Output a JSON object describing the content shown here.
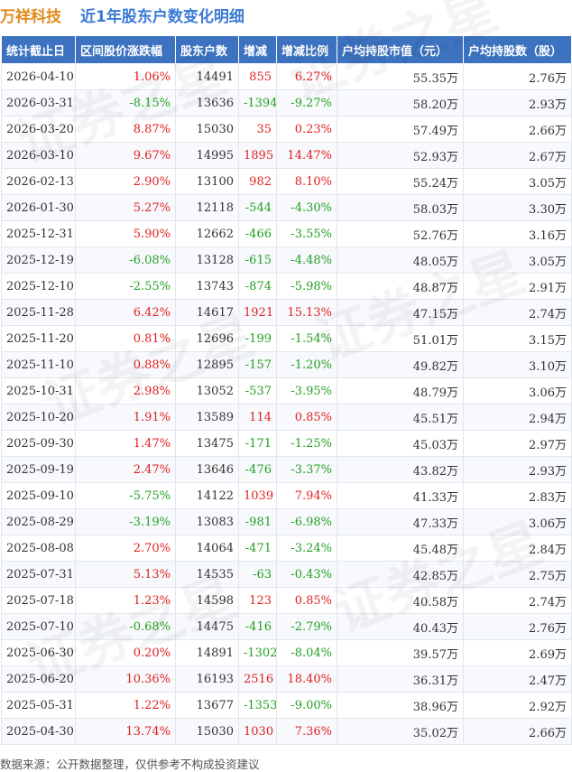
{
  "header": {
    "company": "万祥科技",
    "title": "近1年股东户数变化明细"
  },
  "table": {
    "columns": [
      "统计截止日",
      "区间股价涨跌幅",
      "股东户数",
      "增减",
      "增减比例",
      "户均持股市值（元）",
      "户均持股数（股）"
    ],
    "rows": [
      [
        "2026-04-10",
        "1.06%",
        "14491",
        "855",
        "6.27%",
        "55.35万",
        "2.76万"
      ],
      [
        "2026-03-31",
        "-8.15%",
        "13636",
        "-1394",
        "-9.27%",
        "58.20万",
        "2.93万"
      ],
      [
        "2026-03-20",
        "8.87%",
        "15030",
        "35",
        "0.23%",
        "57.49万",
        "2.66万"
      ],
      [
        "2026-03-10",
        "9.67%",
        "14995",
        "1895",
        "14.47%",
        "52.93万",
        "2.67万"
      ],
      [
        "2026-02-13",
        "2.90%",
        "13100",
        "982",
        "8.10%",
        "55.24万",
        "3.05万"
      ],
      [
        "2026-01-30",
        "5.27%",
        "12118",
        "-544",
        "-4.30%",
        "58.03万",
        "3.30万"
      ],
      [
        "2025-12-31",
        "5.90%",
        "12662",
        "-466",
        "-3.55%",
        "52.76万",
        "3.16万"
      ],
      [
        "2025-12-19",
        "-6.08%",
        "13128",
        "-615",
        "-4.48%",
        "48.05万",
        "3.05万"
      ],
      [
        "2025-12-10",
        "-2.55%",
        "13743",
        "-874",
        "-5.98%",
        "48.87万",
        "2.91万"
      ],
      [
        "2025-11-28",
        "6.42%",
        "14617",
        "1921",
        "15.13%",
        "47.15万",
        "2.74万"
      ],
      [
        "2025-11-20",
        "0.81%",
        "12696",
        "-199",
        "-1.54%",
        "51.01万",
        "3.15万"
      ],
      [
        "2025-11-10",
        "0.88%",
        "12895",
        "-157",
        "-1.20%",
        "49.82万",
        "3.10万"
      ],
      [
        "2025-10-31",
        "2.98%",
        "13052",
        "-537",
        "-3.95%",
        "48.79万",
        "3.06万"
      ],
      [
        "2025-10-20",
        "1.91%",
        "13589",
        "114",
        "0.85%",
        "45.51万",
        "2.94万"
      ],
      [
        "2025-09-30",
        "1.47%",
        "13475",
        "-171",
        "-1.25%",
        "45.03万",
        "2.97万"
      ],
      [
        "2025-09-19",
        "2.47%",
        "13646",
        "-476",
        "-3.37%",
        "43.82万",
        "2.93万"
      ],
      [
        "2025-09-10",
        "-5.75%",
        "14122",
        "1039",
        "7.94%",
        "41.33万",
        "2.83万"
      ],
      [
        "2025-08-29",
        "-3.19%",
        "13083",
        "-981",
        "-6.98%",
        "47.33万",
        "3.06万"
      ],
      [
        "2025-08-08",
        "2.70%",
        "14064",
        "-471",
        "-3.24%",
        "45.48万",
        "2.84万"
      ],
      [
        "2025-07-31",
        "5.13%",
        "14535",
        "-63",
        "-0.43%",
        "42.85万",
        "2.75万"
      ],
      [
        "2025-07-18",
        "1.23%",
        "14598",
        "123",
        "0.85%",
        "40.58万",
        "2.74万"
      ],
      [
        "2025-07-10",
        "-0.68%",
        "14475",
        "-416",
        "-2.79%",
        "40.43万",
        "2.76万"
      ],
      [
        "2025-06-30",
        "0.20%",
        "14891",
        "-1302",
        "-8.04%",
        "39.57万",
        "2.69万"
      ],
      [
        "2025-06-20",
        "10.36%",
        "16193",
        "2516",
        "18.40%",
        "36.31万",
        "2.47万"
      ],
      [
        "2025-05-31",
        "1.22%",
        "13677",
        "-1353",
        "-9.00%",
        "38.96万",
        "2.92万"
      ],
      [
        "2025-04-30",
        "13.74%",
        "15030",
        "1030",
        "7.36%",
        "35.02万",
        "2.66万"
      ]
    ]
  },
  "footer": {
    "source": "数据来源：公开数据整理，仅供参考不构成投资建议"
  },
  "watermark": {
    "text": "证券之星"
  },
  "colors": {
    "header_bg": "#3c72c0",
    "company": "#e08a1e",
    "title": "#3a7ad5",
    "positive": "#e02020",
    "negative": "#22a022"
  }
}
